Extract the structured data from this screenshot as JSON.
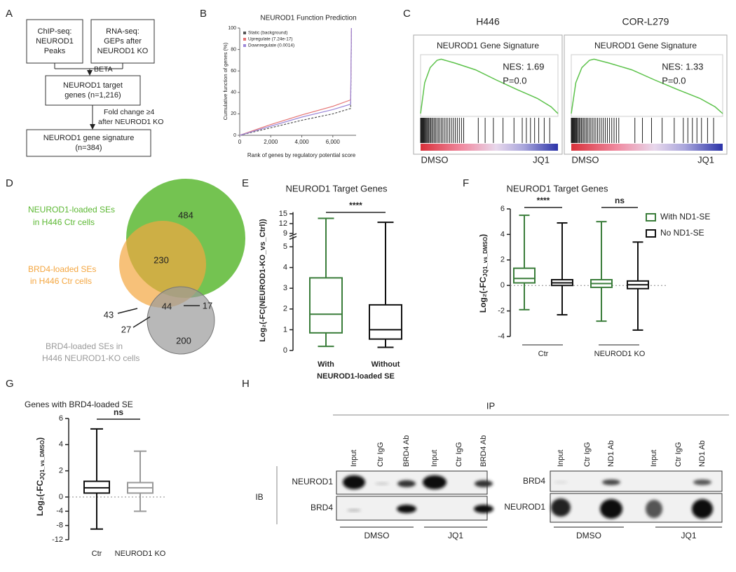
{
  "panel_labels": [
    "A",
    "B",
    "C",
    "D",
    "E",
    "F",
    "G",
    "H"
  ],
  "flowchart": {
    "boxes": [
      {
        "lines": [
          "ChIP-seq:",
          "NEUROD1",
          "Peaks"
        ]
      },
      {
        "lines": [
          "RNA-seq:",
          "GEPs after",
          "NEUROD1 KO"
        ]
      },
      {
        "lines": [
          "NEUROD1 target",
          "genes (n=1,216)"
        ]
      },
      {
        "lines": [
          "NEUROD1 gene signature",
          "(n=384)"
        ]
      }
    ],
    "edge_labels": [
      {
        "lines": [
          "BETA"
        ]
      },
      {
        "lines": [
          "Fold change ≥4",
          "after NEUROD1 KO"
        ]
      }
    ]
  },
  "gsea": [
    {
      "cell_line": "H446",
      "title": "NEUROD1 Gene Signature",
      "nes": "NES: 1.69",
      "p": "P=0.0",
      "left": "DMSO",
      "right": "JQ1"
    },
    {
      "cell_line": "COR-L279",
      "title": "NEUROD1 Gene Signature",
      "nes": "NES: 1.33",
      "p": "P=0.0",
      "left": "DMSO",
      "right": "JQ1"
    }
  ],
  "venn": {
    "sets": [
      {
        "lines": [
          "NEUROD1-loaded SEs",
          "in H446 Ctr cells"
        ],
        "color": "#5cb833"
      },
      {
        "lines": [
          "BRD4-loaded SEs",
          "in H446 Ctr cells"
        ],
        "color": "#f4a640"
      },
      {
        "lines": [
          "BRD4-loaded SEs in",
          "H446 NEUROD1-KO cells"
        ],
        "color": "#9a9a9a"
      }
    ],
    "counts": [
      484,
      230,
      44,
      17,
      43,
      27,
      200
    ]
  },
  "blot": {
    "ip_label": "IP",
    "ib_label": "IB",
    "panels": [
      {
        "lanes": [
          "Input",
          "Ctr IgG",
          "BRD4 Ab",
          "Input",
          "Ctr IgG",
          "BRD4 Ab"
        ],
        "rows": [
          "NEUROD1",
          "BRD4"
        ],
        "conditions": [
          "DMSO",
          "JQ1"
        ]
      },
      {
        "lanes": [
          "Input",
          "Ctr IgG",
          "ND1 Ab",
          "Input",
          "Ctr IgG",
          "ND1 Ab"
        ],
        "rows": [
          "BRD4",
          "NEUROD1"
        ],
        "conditions": [
          "DMSO",
          "JQ1"
        ]
      }
    ]
  },
  "chart_data": [
    {
      "type": "line",
      "title": "NEUROD1 Function Prediction",
      "xlabel": "Rank of genes by regulatory potential score",
      "ylabel": "Cumulative function of genes (%)",
      "x": [
        0,
        2000,
        4000,
        6000,
        7150,
        7200
      ],
      "series": [
        {
          "name": "Static (background)",
          "color": "#555555",
          "dash": true,
          "values": [
            0,
            7,
            14,
            20,
            25,
            97
          ]
        },
        {
          "name": "Upregulate (7.24e-17)",
          "color": "#e57373",
          "values": [
            0,
            10,
            19,
            27,
            33,
            100
          ]
        },
        {
          "name": "Downregulate (0.0014)",
          "color": "#9c88d8",
          "values": [
            0,
            8.5,
            17,
            24,
            29,
            100
          ]
        }
      ],
      "xlim": [
        0,
        7500
      ],
      "ylim": [
        0,
        100
      ],
      "xticks": [
        0,
        {
          "value": 2000,
          "label": "2,000"
        },
        {
          "value": 4000,
          "label": "4,000"
        },
        {
          "value": 6000,
          "label": "6,000"
        }
      ],
      "yticks": [
        0,
        20,
        40,
        60,
        80,
        100
      ],
      "legend": "upper left"
    },
    {
      "type": "box",
      "title": "NEUROD1 Target Genes",
      "ylabel": "Log₂(-FC(NEUROD1-KO_vs_Ctrl))",
      "xlabel": "NEUROD1-loaded SE",
      "categories": [
        "With",
        "Without"
      ],
      "boxes": [
        {
          "min": 0.2,
          "q1": 0.85,
          "median": 1.75,
          "q3": 3.5,
          "max": 13.6,
          "color": "#3a7d3a"
        },
        {
          "min": 0.15,
          "q1": 0.55,
          "median": 1.0,
          "q3": 2.2,
          "max": 12.4,
          "color": "#111111"
        }
      ],
      "ylim": [
        0,
        15.5
      ],
      "ybreak": [
        5.5,
        8.5
      ],
      "yticks": [
        0,
        1,
        2,
        3,
        4,
        5,
        9,
        12,
        15
      ],
      "significance": "****"
    },
    {
      "type": "box",
      "title": "NEUROD1 Target Genes",
      "ylabel_parts": [
        "Log₂(-FC",
        "JQ1_vs_DMSO",
        ")"
      ],
      "categories": [
        "Ctr",
        "NEUROD1 KO"
      ],
      "series": [
        {
          "name": "With ND1-SE",
          "color": "#3a7d3a",
          "boxes": [
            {
              "min": -1.9,
              "q1": 0.2,
              "median": 0.55,
              "q3": 1.35,
              "max": 5.5
            },
            {
              "min": -2.8,
              "q1": -0.15,
              "median": 0.15,
              "q3": 0.45,
              "max": 5.0
            }
          ]
        },
        {
          "name": "No ND1-SE",
          "color": "#111111",
          "boxes": [
            {
              "min": -2.3,
              "q1": 0.0,
              "median": 0.2,
              "q3": 0.45,
              "max": 4.9
            },
            {
              "min": -3.5,
              "q1": -0.25,
              "median": 0.05,
              "q3": 0.35,
              "max": 3.4
            }
          ]
        }
      ],
      "ylim": [
        -4,
        6
      ],
      "yticks": [
        -4,
        -2,
        0,
        2,
        4,
        6
      ],
      "significance": [
        "****",
        "ns"
      ],
      "legend": "right"
    },
    {
      "type": "box",
      "title": "Genes with BRD4-loaded SE",
      "ylabel_parts": [
        "Log₂(-FC",
        "JQ1_vs_DMSO",
        ")"
      ],
      "categories": [
        "Ctr",
        "NEUROD1 KO"
      ],
      "boxes": [
        {
          "min": -9,
          "q1": 0.3,
          "median": 0.7,
          "q3": 1.2,
          "max": 5.2,
          "color": "#111111"
        },
        {
          "min": -4,
          "q1": 0.3,
          "median": 0.7,
          "q3": 1.1,
          "max": 3.5,
          "color": "#999999"
        }
      ],
      "ylim": [
        -12,
        6
      ],
      "yticks": [
        -12,
        -8,
        -4,
        0,
        2,
        4,
        6
      ],
      "significance": "ns"
    }
  ]
}
